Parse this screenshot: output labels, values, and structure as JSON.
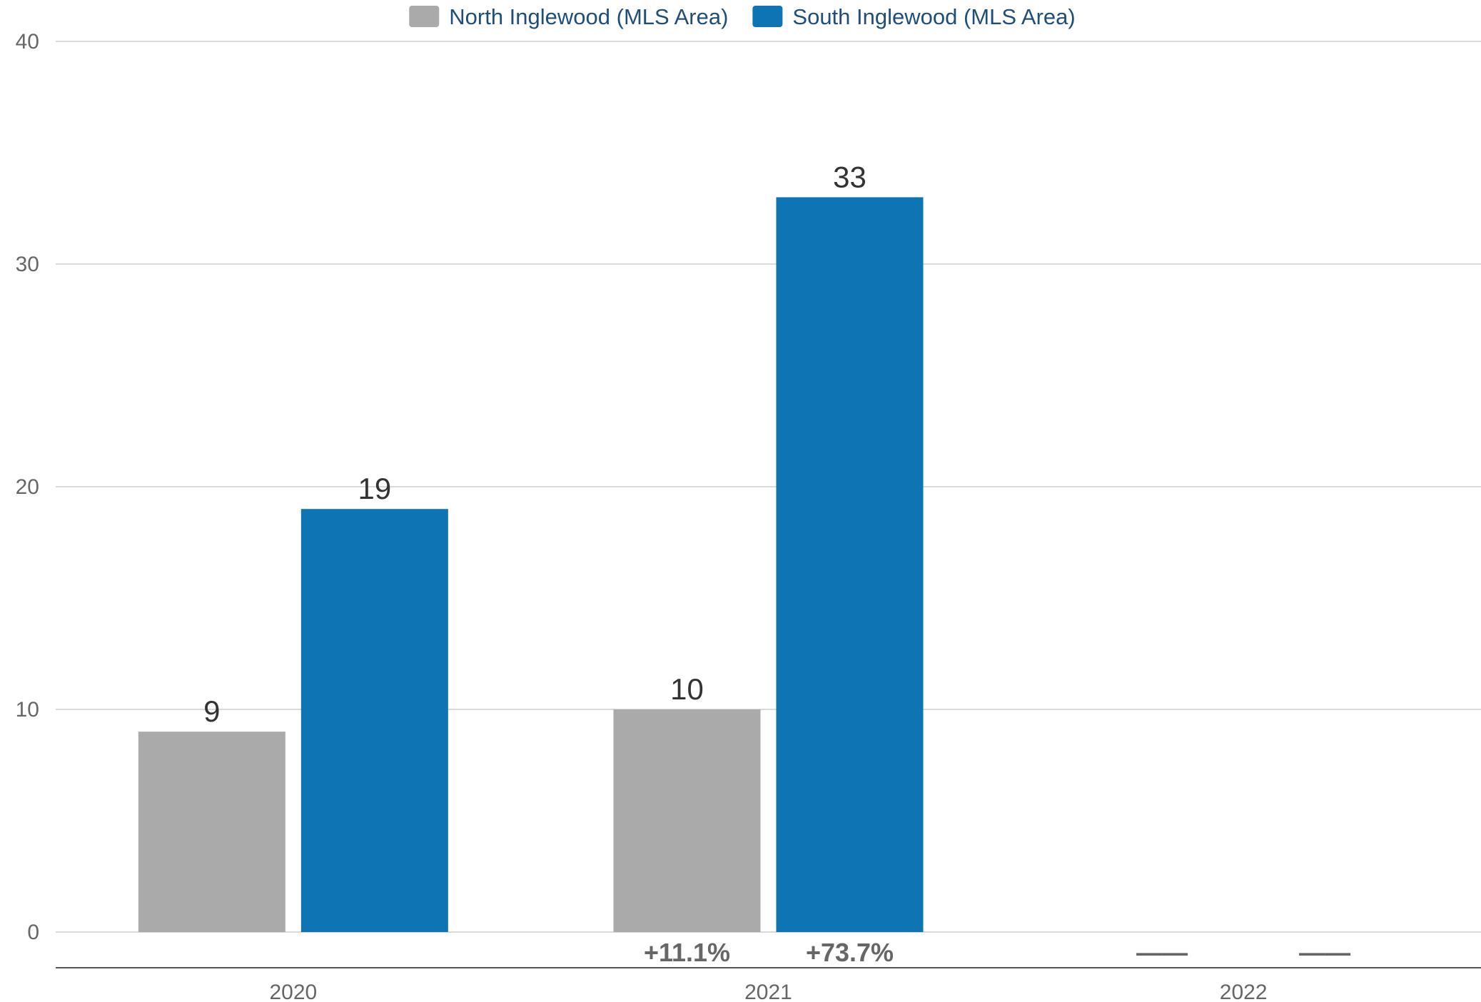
{
  "chart_data": {
    "type": "bar",
    "categories": [
      "2020",
      "2021",
      "2022"
    ],
    "series": [
      {
        "name": "North Inglewood (MLS Area)",
        "color": "#aaaaaa",
        "values": [
          9,
          10,
          null
        ]
      },
      {
        "name": "South Inglewood (MLS Area)",
        "color": "#0e74b4",
        "values": [
          19,
          33,
          null
        ]
      }
    ],
    "change_labels": [
      [
        "",
        ""
      ],
      [
        "+11.1%",
        "+73.7%"
      ],
      [
        "——",
        "——"
      ]
    ],
    "yticks": [
      "0",
      "10",
      "20",
      "30",
      "40"
    ],
    "ylim": [
      0,
      40
    ],
    "grid": true,
    "legend": "top-center"
  }
}
